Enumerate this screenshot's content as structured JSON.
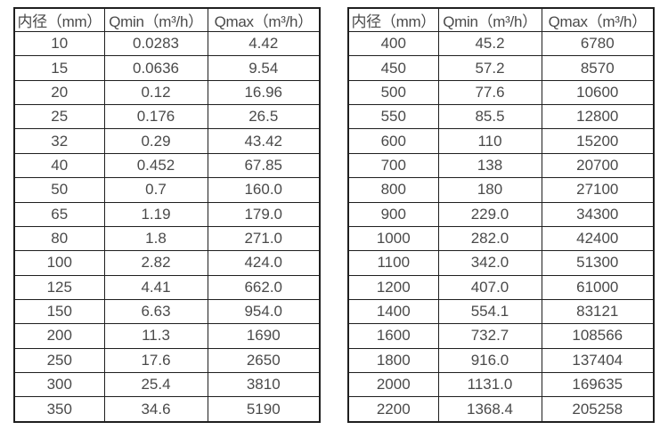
{
  "page": {
    "background_color": "#ffffff",
    "text_color": "#4a4a4a",
    "border_color": "#1f1f1f"
  },
  "tables": [
    {
      "id": "small-diameters",
      "headers": [
        "内径（mm）",
        "Qmin（m³/h）",
        "Qmax（m³/h）"
      ],
      "rows": [
        [
          "10",
          "0.0283",
          "4.42"
        ],
        [
          "15",
          "0.0636",
          "9.54"
        ],
        [
          "20",
          "0.12",
          "16.96"
        ],
        [
          "25",
          "0.176",
          "26.5"
        ],
        [
          "32",
          "0.29",
          "43.42"
        ],
        [
          "40",
          "0.452",
          "67.85"
        ],
        [
          "50",
          "0.7",
          "160.0"
        ],
        [
          "65",
          "1.19",
          "179.0"
        ],
        [
          "80",
          "1.8",
          "271.0"
        ],
        [
          "100",
          "2.82",
          "424.0"
        ],
        [
          "125",
          "4.41",
          "662.0"
        ],
        [
          "150",
          "6.63",
          "954.0"
        ],
        [
          "200",
          "11.3",
          "1690"
        ],
        [
          "250",
          "17.6",
          "2650"
        ],
        [
          "300",
          "25.4",
          "3810"
        ],
        [
          "350",
          "34.6",
          "5190"
        ]
      ]
    },
    {
      "id": "large-diameters",
      "headers": [
        "内径（mm）",
        "Qmin（m³/h）",
        "Qmax（m³/h）"
      ],
      "rows": [
        [
          "400",
          "45.2",
          "6780"
        ],
        [
          "450",
          "57.2",
          "8570"
        ],
        [
          "500",
          "77.6",
          "10600"
        ],
        [
          "550",
          "85.5",
          "12800"
        ],
        [
          "600",
          "110",
          "15200"
        ],
        [
          "700",
          "138",
          "20700"
        ],
        [
          "800",
          "180",
          "27100"
        ],
        [
          "900",
          "229.0",
          "34300"
        ],
        [
          "1000",
          "282.0",
          "42400"
        ],
        [
          "1100",
          "342.0",
          "51300"
        ],
        [
          "1200",
          "407.0",
          "61000"
        ],
        [
          "1400",
          "554.1",
          "83121"
        ],
        [
          "1600",
          "732.7",
          "108566"
        ],
        [
          "1800",
          "916.0",
          "137404"
        ],
        [
          "2000",
          "1131.0",
          "169635"
        ],
        [
          "2200",
          "1368.4",
          "205258"
        ]
      ]
    }
  ]
}
